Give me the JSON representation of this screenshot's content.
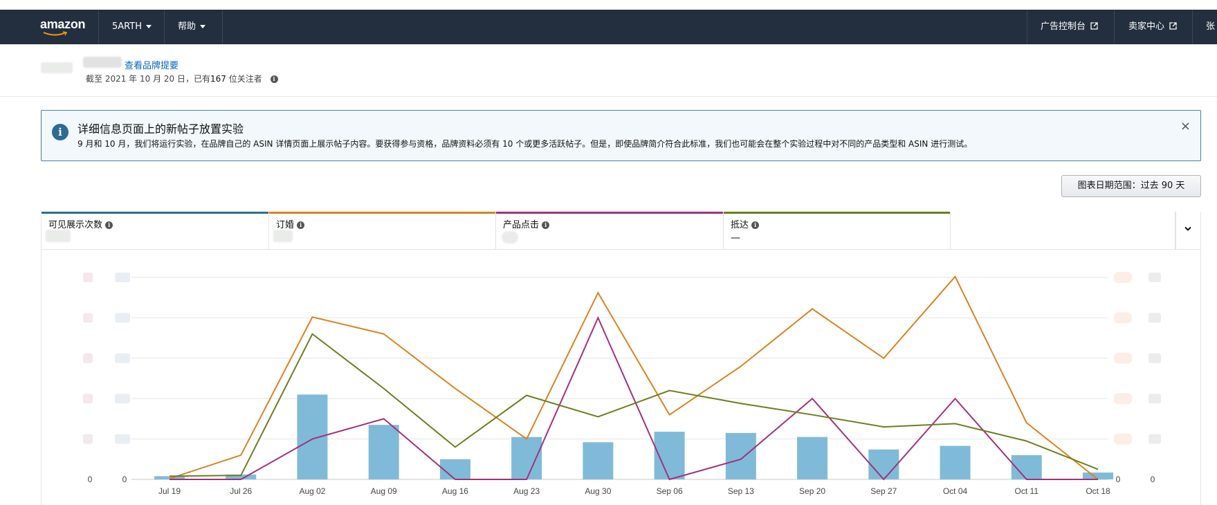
{
  "navbar": {
    "logo_text": "amazon",
    "account_menu": "5ARTH",
    "help_menu": "帮助",
    "ad_console": "广告控制台",
    "seller_central": "卖家中心",
    "truncated_item": "张"
  },
  "brand": {
    "view_brand_link": "查看品牌提要",
    "as_of_prefix": "截至 2021 年 10 月 20 日，已有",
    "follower_count": "167",
    "follower_suffix": "位关注者"
  },
  "alert": {
    "title": "详细信息页面上的新帖子放置实验",
    "body": "9 月和 10 月，我们将运行实验，在品牌自己的 ASIN 详情页面上展示帖子内容。要获得参与资格，品牌资料必须有 10 个或更多活跃帖子。但是，即使品牌简介符合此标准，我们也可能会在整个实验过程中对不同的产品类型和 ASIN 进行测试。",
    "close_symbol": "×"
  },
  "date_range_button": "图表日期范围：过去 90 天",
  "metric_tabs": [
    {
      "label": "可见展示次数",
      "value": "",
      "color": "#2e6e8e"
    },
    {
      "label": "订婚",
      "value": "",
      "color": "#d9831f"
    },
    {
      "label": "产品点击",
      "value": "",
      "color": "#a3307c"
    },
    {
      "label": "抵达",
      "value": "—",
      "color": "#6b7f1f"
    }
  ],
  "chart_data": {
    "type": "bar+line",
    "categories": [
      "Jul 19",
      "Jul 26",
      "Aug 02",
      "Aug 09",
      "Aug 16",
      "Aug 23",
      "Aug 30",
      "Sep 06",
      "Sep 13",
      "Sep 20",
      "Sep 27",
      "Oct 04",
      "Oct 11",
      "Oct 18"
    ],
    "axis_zero_labels": {
      "left_outer": "0",
      "left_inner": "0",
      "right_inner": "0",
      "right_outer": "0"
    },
    "ylim": [
      0,
      5
    ],
    "grid": true,
    "series": [
      {
        "key": "visible_impressions",
        "render": "bar",
        "color": "#7fbbd8",
        "values": [
          0.08,
          0.12,
          2.1,
          1.35,
          0.5,
          1.05,
          0.92,
          1.18,
          1.15,
          1.05,
          0.74,
          0.83,
          0.6,
          0.17
        ]
      },
      {
        "key": "engagement",
        "render": "line",
        "color": "#d9831f",
        "values": [
          0.02,
          0.6,
          4.02,
          3.6,
          2.25,
          1.0,
          4.62,
          1.6,
          2.8,
          4.22,
          3.0,
          5.02,
          1.4,
          0.0
        ]
      },
      {
        "key": "product_clicks",
        "render": "line",
        "color": "#a3307c",
        "values": [
          0.0,
          0.0,
          1.0,
          1.5,
          0.0,
          0.0,
          4.0,
          0.0,
          0.5,
          2.0,
          0.0,
          2.0,
          0.0,
          0.0
        ]
      },
      {
        "key": "reach",
        "render": "line",
        "color": "#6b7f1f",
        "values": [
          0.08,
          0.1,
          3.6,
          2.25,
          0.8,
          2.08,
          1.55,
          2.2,
          1.88,
          1.6,
          1.3,
          1.38,
          0.95,
          0.25
        ]
      }
    ]
  }
}
